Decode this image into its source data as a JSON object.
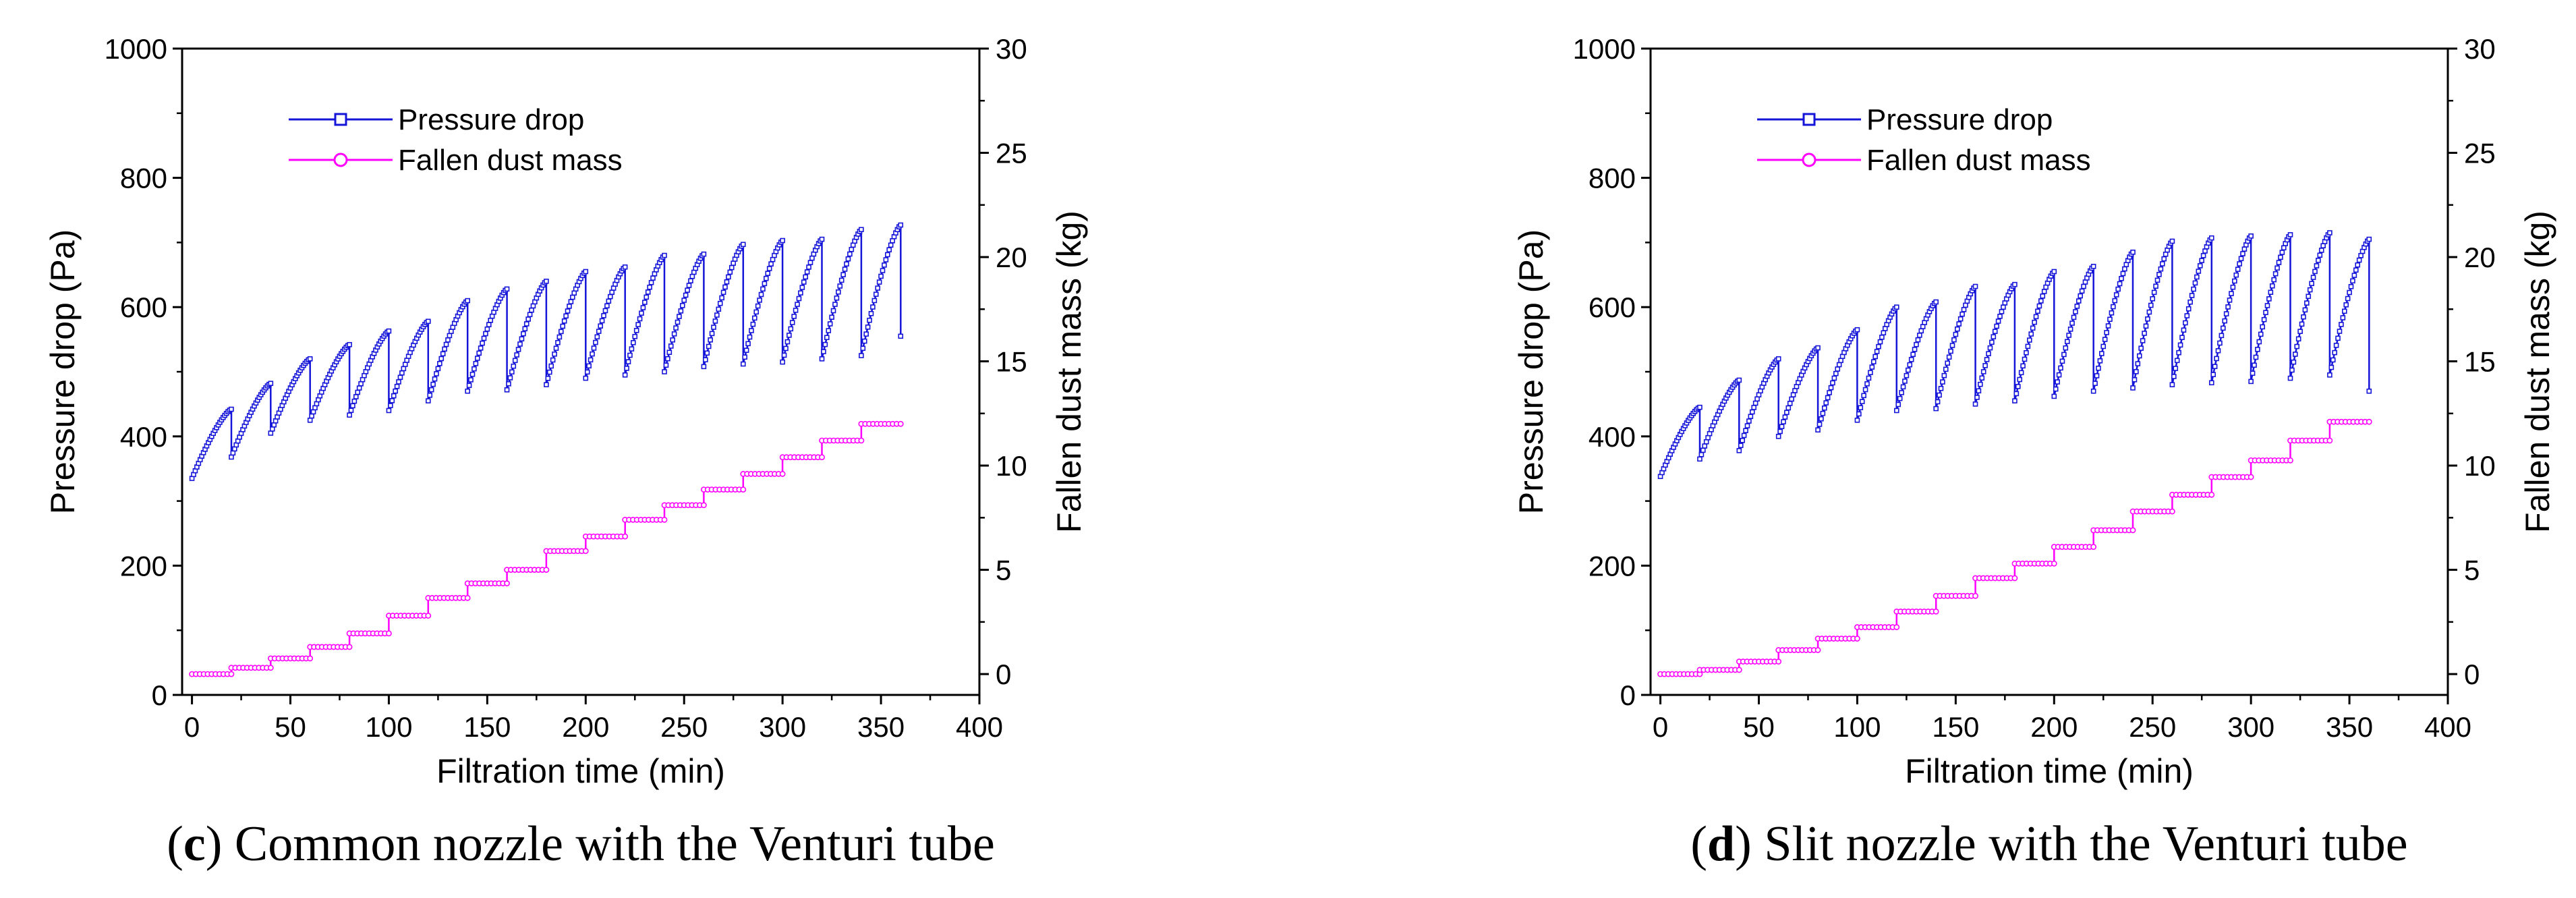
{
  "colors": {
    "pressure_drop": "#1515d9",
    "fallen_dust_mass": "#ff00ff",
    "axis": "#000000"
  },
  "chart_data": [
    {
      "type": "line",
      "caption_letter": "c",
      "caption_text": " Common nozzle with the Venturi tube",
      "xlabel": "Filtration time (min)",
      "ylabel": "Pressure drop (Pa)",
      "y2label": "Fallen dust mass (kg)",
      "xlim": [
        -5,
        400
      ],
      "ylim": [
        0,
        1000
      ],
      "y2lim": [
        -1,
        30
      ],
      "xticks": [
        0,
        50,
        100,
        150,
        200,
        250,
        300,
        350,
        400
      ],
      "yticks": [
        0,
        200,
        400,
        600,
        800,
        1000
      ],
      "y2ticks": [
        0,
        5,
        10,
        15,
        20,
        25,
        30
      ],
      "legend_position": "top-left",
      "cycles": [
        {
          "t0": 0,
          "t1": 20,
          "p0": 335,
          "p1": 442
        },
        {
          "t0": 20,
          "t1": 40,
          "p0": 368,
          "p1": 482
        },
        {
          "t0": 40,
          "t1": 60,
          "p0": 405,
          "p1": 520
        },
        {
          "t0": 60,
          "t1": 80,
          "p0": 425,
          "p1": 542
        },
        {
          "t0": 80,
          "t1": 100,
          "p0": 433,
          "p1": 563
        },
        {
          "t0": 100,
          "t1": 120,
          "p0": 440,
          "p1": 578
        },
        {
          "t0": 120,
          "t1": 140,
          "p0": 455,
          "p1": 610
        },
        {
          "t0": 140,
          "t1": 160,
          "p0": 470,
          "p1": 628
        },
        {
          "t0": 160,
          "t1": 180,
          "p0": 472,
          "p1": 640
        },
        {
          "t0": 180,
          "t1": 200,
          "p0": 480,
          "p1": 655
        },
        {
          "t0": 200,
          "t1": 220,
          "p0": 490,
          "p1": 662
        },
        {
          "t0": 220,
          "t1": 240,
          "p0": 495,
          "p1": 680
        },
        {
          "t0": 240,
          "t1": 260,
          "p0": 500,
          "p1": 682
        },
        {
          "t0": 260,
          "t1": 280,
          "p0": 508,
          "p1": 697
        },
        {
          "t0": 280,
          "t1": 300,
          "p0": 512,
          "p1": 703
        },
        {
          "t0": 300,
          "t1": 320,
          "p0": 515,
          "p1": 705
        },
        {
          "t0": 320,
          "t1": 340,
          "p0": 520,
          "p1": 720
        },
        {
          "t0": 340,
          "t1": 360,
          "p0": 525,
          "p1": 727
        }
      ],
      "end_pressure": 555,
      "dust_steps": [
        {
          "t0": 0,
          "t1": 20,
          "m": 0.0
        },
        {
          "t0": 20,
          "t1": 40,
          "m": 0.3
        },
        {
          "t0": 40,
          "t1": 60,
          "m": 0.75
        },
        {
          "t0": 60,
          "t1": 80,
          "m": 1.3
        },
        {
          "t0": 80,
          "t1": 100,
          "m": 1.95
        },
        {
          "t0": 100,
          "t1": 120,
          "m": 2.8
        },
        {
          "t0": 120,
          "t1": 140,
          "m": 3.65
        },
        {
          "t0": 140,
          "t1": 160,
          "m": 4.35
        },
        {
          "t0": 160,
          "t1": 180,
          "m": 5.0
        },
        {
          "t0": 180,
          "t1": 200,
          "m": 5.9
        },
        {
          "t0": 200,
          "t1": 220,
          "m": 6.6
        },
        {
          "t0": 220,
          "t1": 240,
          "m": 7.4
        },
        {
          "t0": 240,
          "t1": 260,
          "m": 8.1
        },
        {
          "t0": 260,
          "t1": 280,
          "m": 8.85
        },
        {
          "t0": 280,
          "t1": 300,
          "m": 9.6
        },
        {
          "t0": 300,
          "t1": 320,
          "m": 10.4
        },
        {
          "t0": 320,
          "t1": 340,
          "m": 11.2
        },
        {
          "t0": 340,
          "t1": 360,
          "m": 12.0
        }
      ],
      "series": [
        {
          "name": "Pressure drop",
          "axis": "left",
          "marker": "square"
        },
        {
          "name": "Fallen dust mass",
          "axis": "right",
          "marker": "circle"
        }
      ]
    },
    {
      "type": "line",
      "caption_letter": "d",
      "caption_text": " Slit nozzle with the Venturi tube",
      "xlabel": "Filtration time (min)",
      "ylabel": "Pressure drop (Pa)",
      "y2label": "Fallen dust mass (kg)",
      "xlim": [
        -5,
        400
      ],
      "ylim": [
        0,
        1000
      ],
      "y2lim": [
        -1,
        30
      ],
      "xticks": [
        0,
        50,
        100,
        150,
        200,
        250,
        300,
        350,
        400
      ],
      "yticks": [
        0,
        200,
        400,
        600,
        800,
        1000
      ],
      "y2ticks": [
        0,
        5,
        10,
        15,
        20,
        25,
        30
      ],
      "legend_position": "top-left",
      "cycles": [
        {
          "t0": 0,
          "t1": 20,
          "p0": 338,
          "p1": 445
        },
        {
          "t0": 20,
          "t1": 40,
          "p0": 365,
          "p1": 487
        },
        {
          "t0": 40,
          "t1": 60,
          "p0": 378,
          "p1": 520
        },
        {
          "t0": 60,
          "t1": 80,
          "p0": 400,
          "p1": 537
        },
        {
          "t0": 80,
          "t1": 100,
          "p0": 410,
          "p1": 565
        },
        {
          "t0": 100,
          "t1": 120,
          "p0": 425,
          "p1": 600
        },
        {
          "t0": 120,
          "t1": 140,
          "p0": 440,
          "p1": 608
        },
        {
          "t0": 140,
          "t1": 160,
          "p0": 443,
          "p1": 632
        },
        {
          "t0": 160,
          "t1": 180,
          "p0": 450,
          "p1": 635
        },
        {
          "t0": 180,
          "t1": 200,
          "p0": 455,
          "p1": 655
        },
        {
          "t0": 200,
          "t1": 220,
          "p0": 462,
          "p1": 663
        },
        {
          "t0": 220,
          "t1": 240,
          "p0": 470,
          "p1": 685
        },
        {
          "t0": 240,
          "t1": 260,
          "p0": 475,
          "p1": 702
        },
        {
          "t0": 260,
          "t1": 280,
          "p0": 480,
          "p1": 707
        },
        {
          "t0": 280,
          "t1": 300,
          "p0": 483,
          "p1": 710
        },
        {
          "t0": 300,
          "t1": 320,
          "p0": 485,
          "p1": 712
        },
        {
          "t0": 320,
          "t1": 340,
          "p0": 490,
          "p1": 715
        },
        {
          "t0": 340,
          "t1": 360,
          "p0": 495,
          "p1": 705
        }
      ],
      "end_pressure": 470,
      "dust_steps": [
        {
          "t0": 0,
          "t1": 20,
          "m": 0.0
        },
        {
          "t0": 20,
          "t1": 40,
          "m": 0.2
        },
        {
          "t0": 40,
          "t1": 60,
          "m": 0.6
        },
        {
          "t0": 60,
          "t1": 80,
          "m": 1.15
        },
        {
          "t0": 80,
          "t1": 100,
          "m": 1.7
        },
        {
          "t0": 100,
          "t1": 120,
          "m": 2.25
        },
        {
          "t0": 120,
          "t1": 140,
          "m": 3.0
        },
        {
          "t0": 140,
          "t1": 160,
          "m": 3.75
        },
        {
          "t0": 160,
          "t1": 180,
          "m": 4.6
        },
        {
          "t0": 180,
          "t1": 200,
          "m": 5.3
        },
        {
          "t0": 200,
          "t1": 220,
          "m": 6.1
        },
        {
          "t0": 220,
          "t1": 240,
          "m": 6.9
        },
        {
          "t0": 240,
          "t1": 260,
          "m": 7.8
        },
        {
          "t0": 260,
          "t1": 280,
          "m": 8.6
        },
        {
          "t0": 280,
          "t1": 300,
          "m": 9.45
        },
        {
          "t0": 300,
          "t1": 320,
          "m": 10.25
        },
        {
          "t0": 320,
          "t1": 340,
          "m": 11.2
        },
        {
          "t0": 340,
          "t1": 360,
          "m": 12.1
        }
      ],
      "series": [
        {
          "name": "Pressure drop",
          "axis": "left",
          "marker": "square"
        },
        {
          "name": "Fallen dust mass",
          "axis": "right",
          "marker": "circle"
        }
      ]
    }
  ]
}
